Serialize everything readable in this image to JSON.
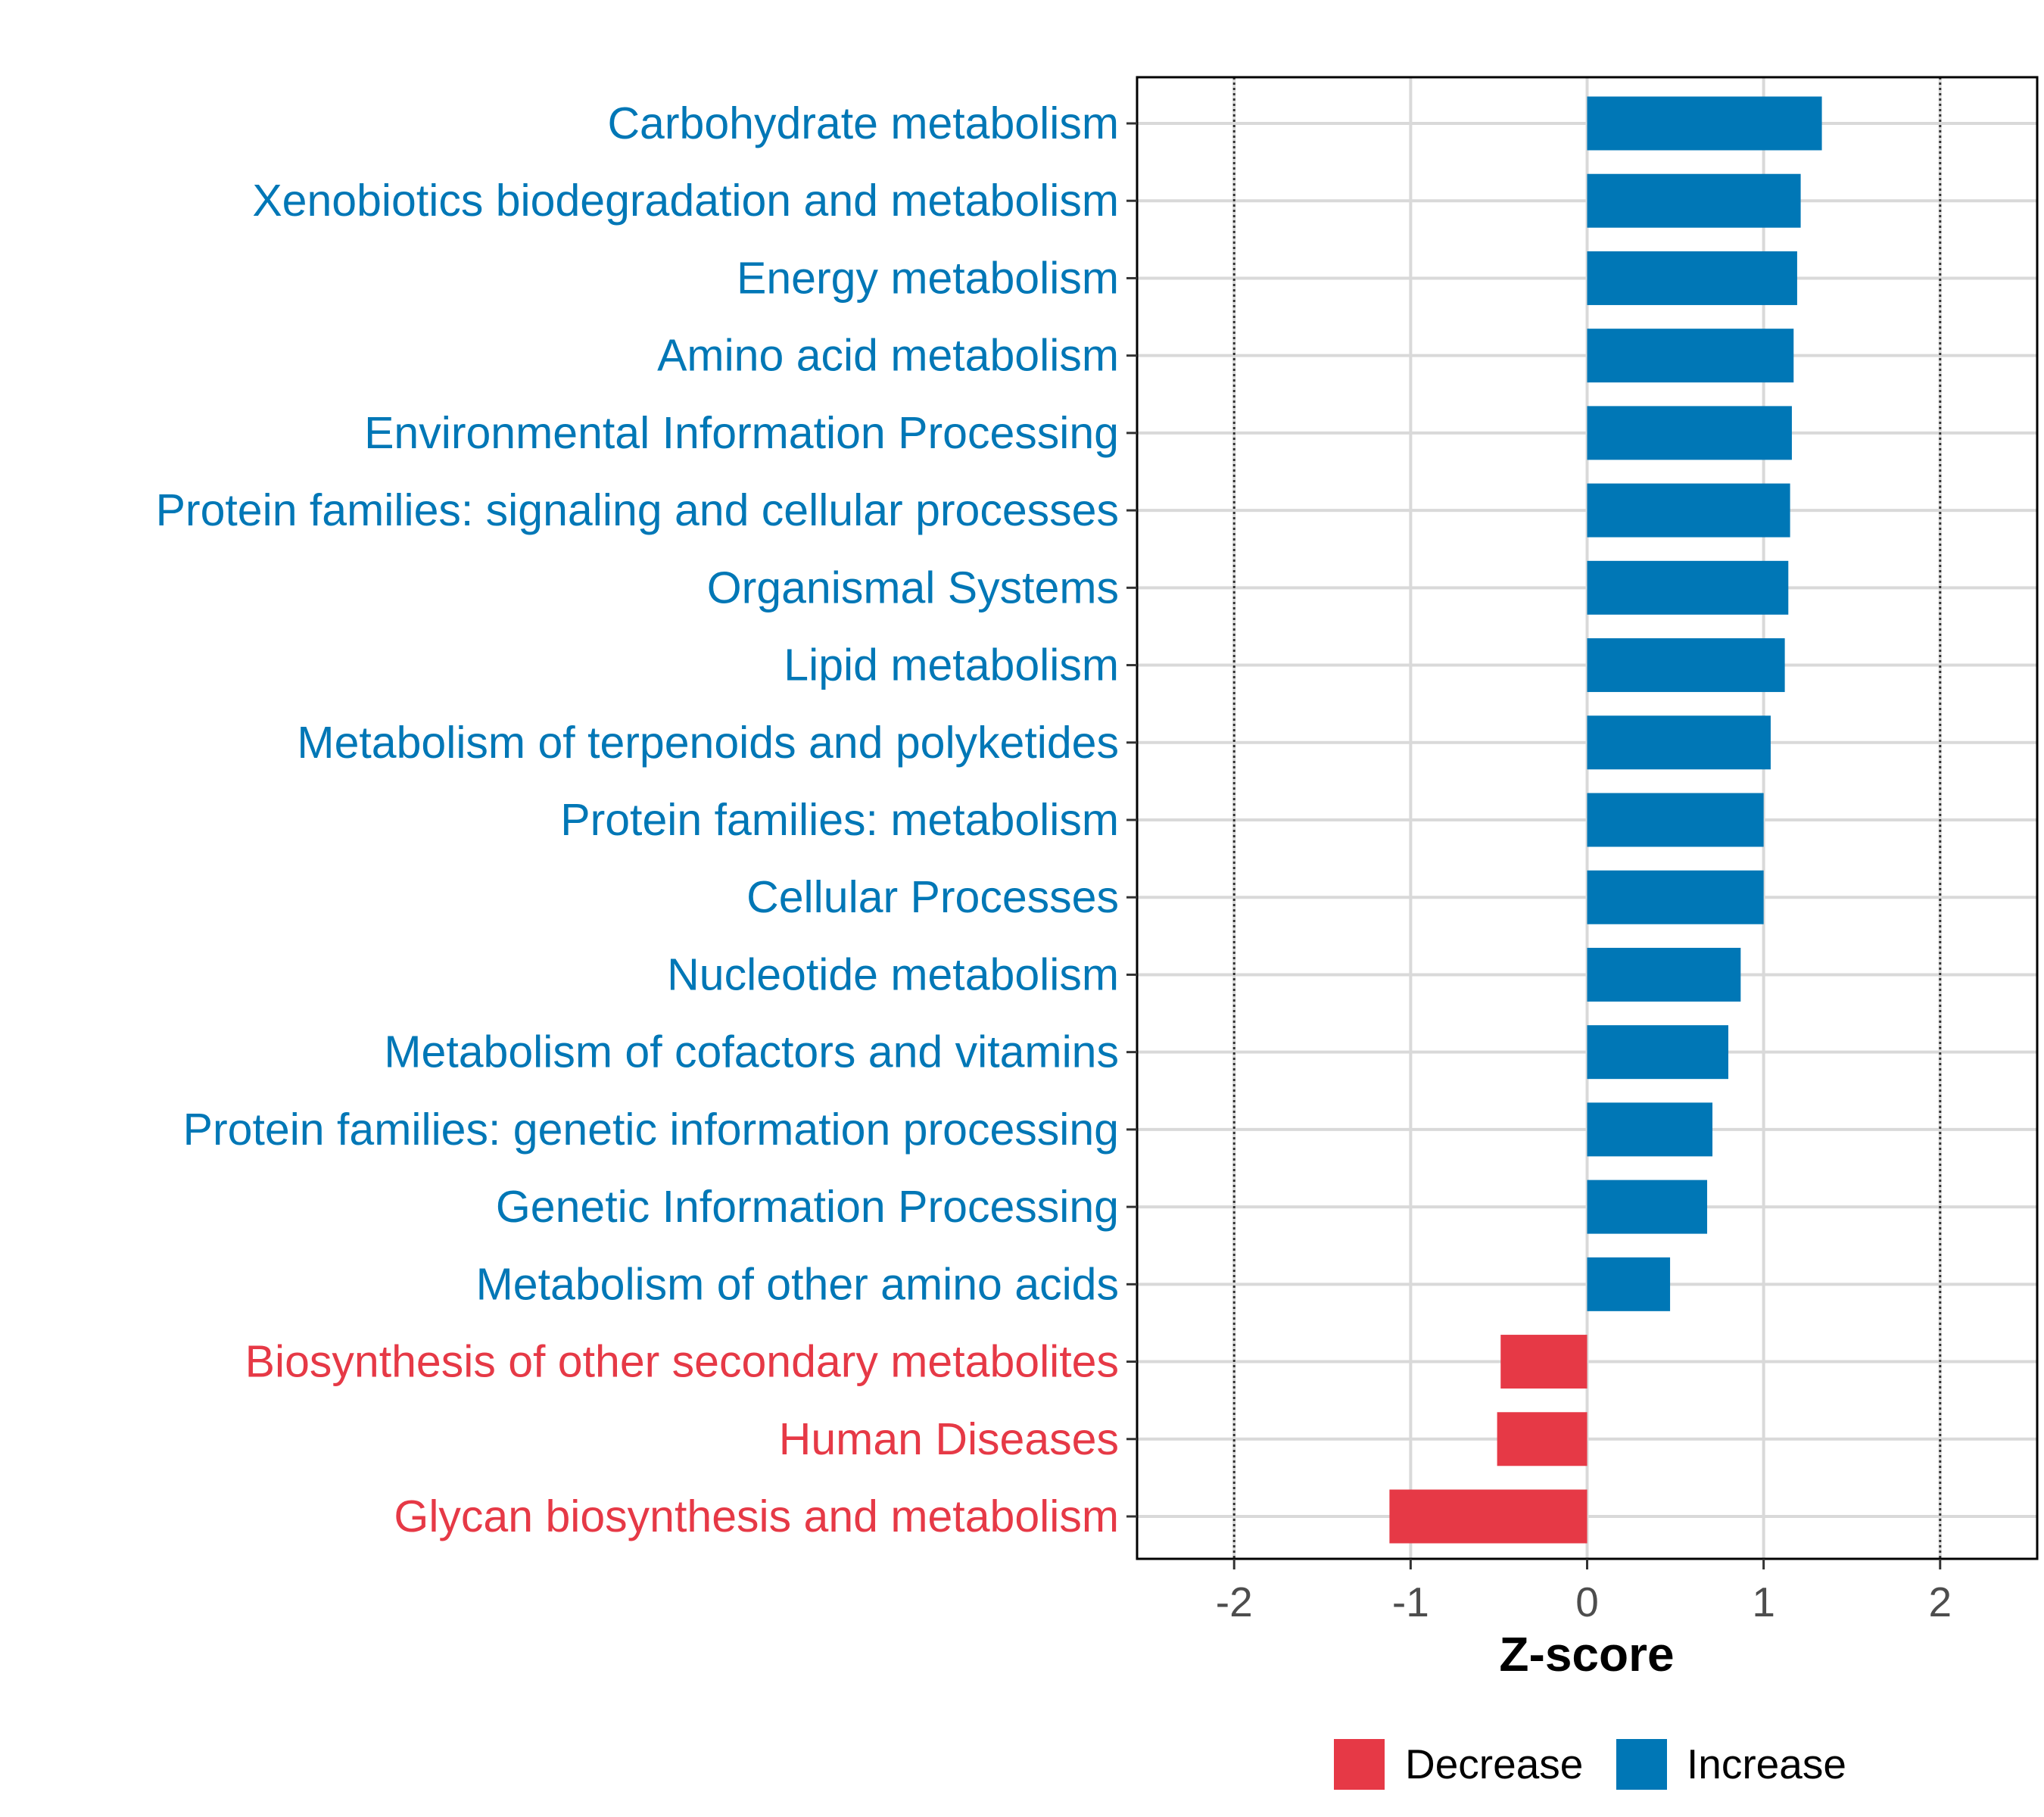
{
  "chart_data": {
    "type": "bar",
    "orientation": "horizontal",
    "xlabel": "Z-score",
    "ylabel": "",
    "xlim": [
      -2.55,
      2.55
    ],
    "xticks": [
      -2,
      -1,
      0,
      1,
      2
    ],
    "tick_labels": [
      "-2",
      "-1",
      "0",
      "1",
      "2"
    ],
    "reference_lines": [
      -2,
      2
    ],
    "grid": true,
    "legend_position": "bottom",
    "colors": {
      "Decrease": "#E63946",
      "Increase": "#0077B6"
    },
    "legend": [
      {
        "label": "Decrease",
        "color": "#E63946"
      },
      {
        "label": "Increase",
        "color": "#0077B6"
      }
    ],
    "categories": [
      "Carbohydrate metabolism",
      "Xenobiotics biodegradation and metabolism",
      "Energy metabolism",
      "Amino acid metabolism",
      "Environmental Information Processing",
      "Protein families: signaling and cellular processes",
      "Organismal Systems",
      "Lipid metabolism",
      "Metabolism of terpenoids and polyketides",
      "Protein families: metabolism",
      "Cellular Processes",
      "Nucleotide metabolism",
      "Metabolism of cofactors and vitamins",
      "Protein families: genetic information processing",
      "Genetic Information Processing",
      "Metabolism of other amino acids",
      "Biosynthesis of other secondary metabolites",
      "Human Diseases",
      "Glycan biosynthesis and metabolism"
    ],
    "values": [
      1.33,
      1.21,
      1.19,
      1.17,
      1.16,
      1.15,
      1.14,
      1.12,
      1.04,
      1.0,
      1.0,
      0.87,
      0.8,
      0.71,
      0.68,
      0.47,
      -0.49,
      -0.51,
      -1.12
    ],
    "groups": [
      "Increase",
      "Increase",
      "Increase",
      "Increase",
      "Increase",
      "Increase",
      "Increase",
      "Increase",
      "Increase",
      "Increase",
      "Increase",
      "Increase",
      "Increase",
      "Increase",
      "Increase",
      "Increase",
      "Decrease",
      "Decrease",
      "Decrease"
    ]
  }
}
